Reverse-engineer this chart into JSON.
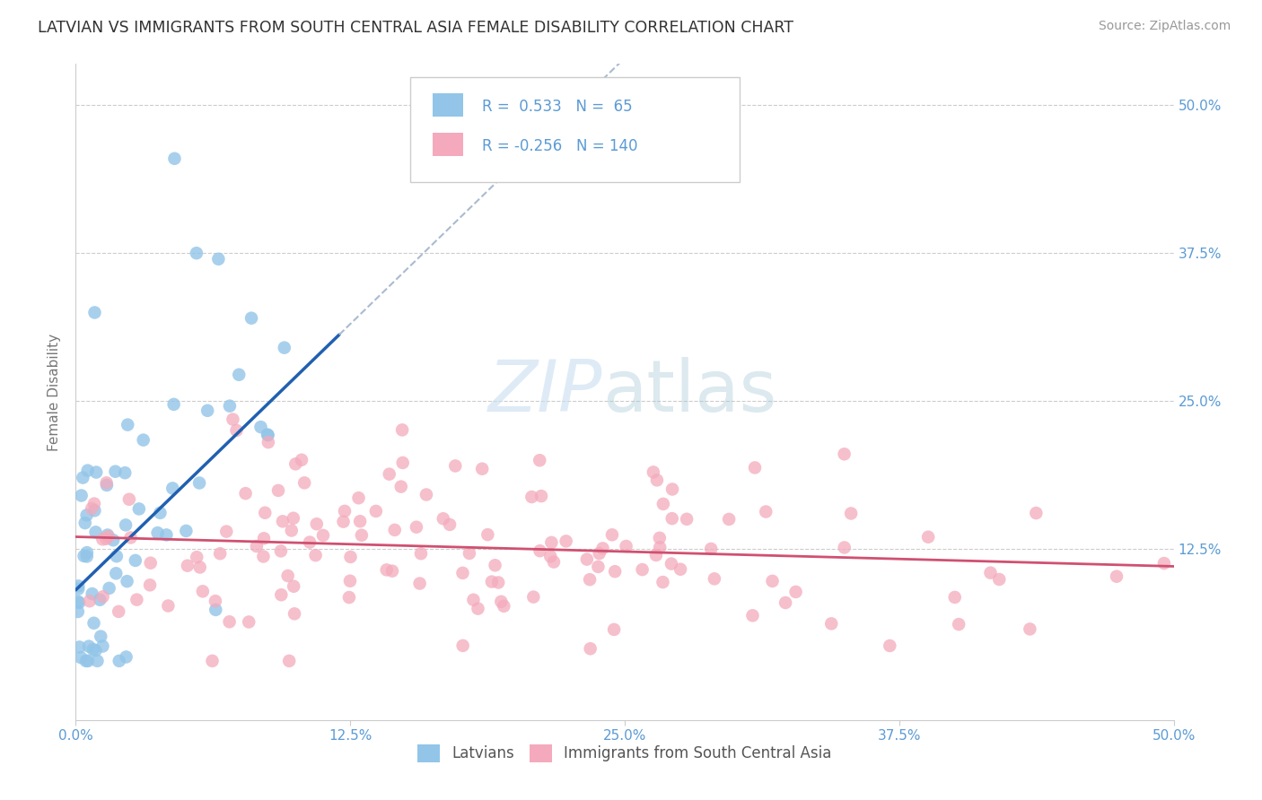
{
  "title": "LATVIAN VS IMMIGRANTS FROM SOUTH CENTRAL ASIA FEMALE DISABILITY CORRELATION CHART",
  "source": "Source: ZipAtlas.com",
  "ylabel_label": "Female Disability",
  "xlim": [
    0.0,
    0.5
  ],
  "ylim": [
    -0.02,
    0.535
  ],
  "latvian_color": "#92C5E8",
  "immigrant_color": "#F4AABC",
  "latvian_trend_color": "#2060B0",
  "immigrant_trend_color": "#D05070",
  "dash_color": "#AABBD0",
  "latvian_R": 0.533,
  "latvian_N": 65,
  "immigrant_R": -0.256,
  "immigrant_N": 140,
  "legend_label1": "Latvians",
  "legend_label2": "Immigrants from South Central Asia",
  "title_color": "#333333",
  "axis_color": "#5B9BD5",
  "grid_color": "#CCCCCC",
  "seed": 42,
  "xtick_vals": [
    0.0,
    0.125,
    0.25,
    0.375,
    0.5
  ],
  "xtick_labels": [
    "0.0%",
    "12.5%",
    "25.0%",
    "37.5%",
    "50.0%"
  ],
  "ytick_vals": [
    0.0,
    0.125,
    0.25,
    0.375,
    0.5
  ],
  "right_ytick_vals": [
    0.125,
    0.25,
    0.375,
    0.5
  ],
  "right_ytick_labels": [
    "12.5%",
    "25.0%",
    "37.5%",
    "50.0%"
  ]
}
